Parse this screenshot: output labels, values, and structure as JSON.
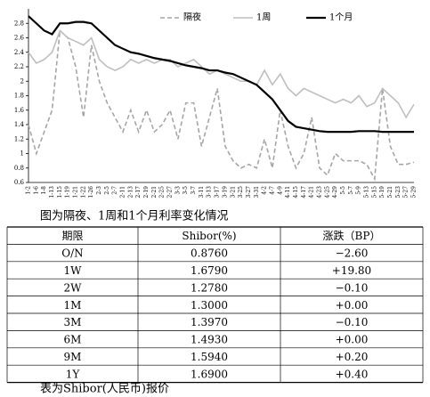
{
  "chart_data": {
    "type": "line",
    "categories": [
      "1-2",
      "1-6",
      "1-8",
      "1-13",
      "1-15",
      "1-19",
      "1-21",
      "1-22",
      "1-26",
      "2-3",
      "2-5",
      "2-7",
      "2-11",
      "2-13",
      "2-17",
      "2-19",
      "2-21",
      "2-25",
      "2-27",
      "3-3",
      "3-5",
      "3-7",
      "3-11",
      "3-13",
      "3-17",
      "3-19",
      "3-21",
      "3-25",
      "3-27",
      "3-31",
      "4-2",
      "4-7",
      "4-9",
      "4-11",
      "4-15",
      "4-17",
      "4-21",
      "4-23",
      "4-25",
      "4-29",
      "5-5",
      "5-7",
      "5-9",
      "5-13",
      "5-15",
      "5-19",
      "5-21",
      "5-23",
      "5-27",
      "5-29"
    ],
    "series": [
      {
        "name": "隔夜",
        "color": "#a6a6a6",
        "dash": true,
        "values": [
          1.4,
          1.0,
          1.3,
          1.6,
          2.7,
          2.6,
          2.2,
          1.5,
          2.5,
          2.0,
          1.7,
          1.5,
          1.3,
          1.6,
          1.3,
          1.6,
          1.3,
          1.4,
          1.6,
          1.2,
          1.7,
          1.7,
          1.1,
          1.5,
          1.9,
          1.1,
          0.9,
          0.8,
          0.85,
          0.8,
          1.2,
          0.8,
          1.6,
          1.1,
          0.8,
          1.0,
          1.5,
          0.8,
          0.7,
          1.0,
          0.9,
          0.9,
          0.9,
          0.85,
          0.65,
          1.9,
          1.1,
          0.85,
          0.85,
          0.88
        ]
      },
      {
        "name": "1周",
        "color": "#bfbfbf",
        "dash": false,
        "values": [
          2.4,
          2.25,
          2.3,
          2.4,
          2.7,
          2.6,
          2.55,
          2.5,
          2.6,
          2.3,
          2.2,
          2.15,
          2.2,
          2.3,
          2.25,
          2.3,
          2.25,
          2.3,
          2.3,
          2.2,
          2.25,
          2.3,
          2.2,
          2.1,
          2.15,
          2.1,
          2.05,
          2.0,
          2.0,
          1.95,
          2.15,
          1.95,
          2.1,
          1.9,
          1.8,
          1.9,
          1.85,
          1.8,
          1.75,
          1.7,
          1.75,
          1.7,
          1.8,
          1.65,
          1.7,
          1.9,
          1.8,
          1.7,
          1.5,
          1.68
        ]
      },
      {
        "name": "1个月",
        "color": "#000000",
        "dash": false,
        "values": [
          2.9,
          2.8,
          2.7,
          2.65,
          2.8,
          2.8,
          2.82,
          2.82,
          2.8,
          2.7,
          2.6,
          2.5,
          2.45,
          2.4,
          2.38,
          2.35,
          2.32,
          2.3,
          2.28,
          2.25,
          2.22,
          2.2,
          2.18,
          2.15,
          2.15,
          2.12,
          2.1,
          2.05,
          2.0,
          1.95,
          1.85,
          1.75,
          1.6,
          1.45,
          1.37,
          1.35,
          1.33,
          1.31,
          1.3,
          1.3,
          1.3,
          1.3,
          1.31,
          1.31,
          1.31,
          1.3,
          1.3,
          1.3,
          1.3,
          1.3
        ]
      }
    ],
    "ylim": [
      0.6,
      3.0
    ],
    "yticks": [
      0.6,
      0.8,
      1,
      1.2,
      1.4,
      1.6,
      1.8,
      2,
      2.2,
      2.4,
      2.6,
      2.8
    ]
  },
  "figure_caption": "图为隔夜、1周和1个月利率变化情况",
  "table": {
    "header": [
      "期限",
      "Shibor(%)",
      "涨跌（BP）"
    ],
    "rows": [
      [
        "O/N",
        "0.8760",
        "−2.60"
      ],
      [
        "1W",
        "1.6790",
        "+19.80"
      ],
      [
        "2W",
        "1.2780",
        "−0.10"
      ],
      [
        "1M",
        "1.3000",
        "+0.00"
      ],
      [
        "3M",
        "1.3970",
        "−0.10"
      ],
      [
        "6M",
        "1.4930",
        "+0.00"
      ],
      [
        "9M",
        "1.5940",
        "+0.20"
      ],
      [
        "1Y",
        "1.6900",
        "+0.40"
      ]
    ]
  },
  "table_caption": "表为Shibor(人民币)报价"
}
